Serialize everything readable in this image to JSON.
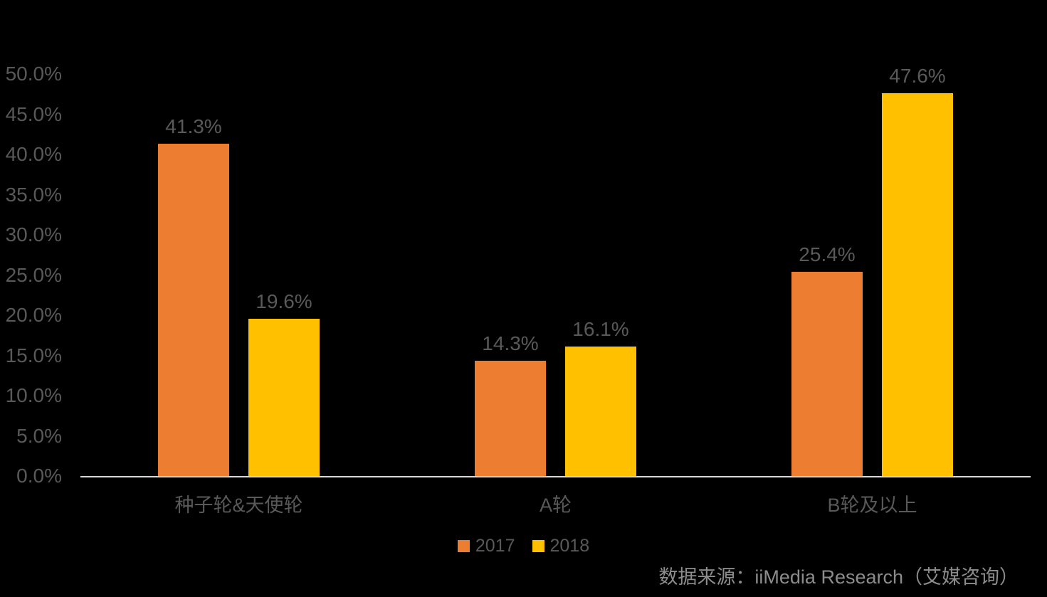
{
  "chart_data": {
    "type": "bar",
    "title": "",
    "categories": [
      "种子轮&天使轮",
      "A轮",
      "B轮及以上"
    ],
    "series": [
      {
        "name": "2017",
        "color": "#ED7D31",
        "values": [
          41.3,
          14.3,
          25.4
        ],
        "labels": [
          "41.3%",
          "14.3%",
          "25.4%"
        ]
      },
      {
        "name": "2018",
        "color": "#FFC000",
        "values": [
          19.6,
          16.1,
          47.6
        ],
        "labels": [
          "19.6%",
          "16.1%",
          "47.6%"
        ]
      }
    ],
    "ylabel": "",
    "xlabel": "",
    "ylim": [
      0,
      50
    ],
    "ytick_step": 5,
    "ytick_labels": [
      "0.0%",
      "5.0%",
      "10.0%",
      "15.0%",
      "20.0%",
      "25.0%",
      "30.0%",
      "35.0%",
      "40.0%",
      "45.0%",
      "50.0%"
    ],
    "grid": false,
    "legend_position": "bottom",
    "data_labels_shown": true
  },
  "source_note": "数据来源：iiMedia Research（艾媒咨询）",
  "colors": {
    "background": "#000000",
    "axis_line": "#D9D9D9",
    "tick_label": "#595959",
    "data_label": "#595959",
    "category_label": "#595959",
    "legend_label": "#595959",
    "source_text": "#8C8C8C",
    "series_2017": "#ED7D31",
    "series_2018": "#FFC000"
  }
}
